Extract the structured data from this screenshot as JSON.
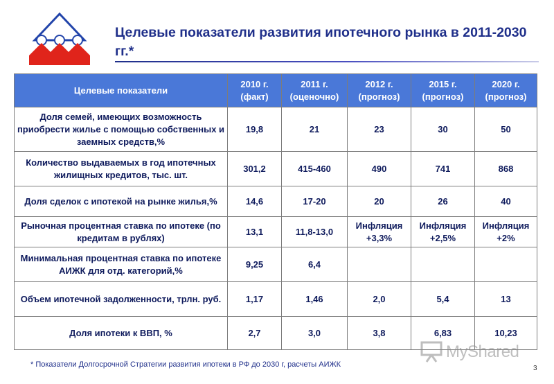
{
  "title": "Целевые показатели развития ипотечного рынка в 2011-2030 гг.*",
  "table": {
    "header": {
      "label": "Целевые показатели",
      "columns": [
        "2010 г. (факт)",
        "2011 г. (оценочно)",
        "2012 г. (прогноз)",
        "2015 г. (прогноз)",
        "2020 г. (прогноз)"
      ]
    },
    "rows": [
      {
        "label": "Доля семей, имеющих возможность приобрести жилье с помощью собственных и заемных средств,%",
        "values": [
          "19,8",
          "21",
          "23",
          "30",
          "50"
        ]
      },
      {
        "label": "Количество выдаваемых в год ипотечных жилищных кредитов, тыс. шт.",
        "values": [
          "301,2",
          "415-460",
          "490",
          "741",
          "868"
        ]
      },
      {
        "label": "Доля сделок с ипотекой на рынке жилья,%",
        "values": [
          "14,6",
          "17-20",
          "20",
          "26",
          "40"
        ]
      },
      {
        "label": "Рыночная процентная ставка по ипотеке (по кредитам в рублях)",
        "values": [
          "13,1",
          "11,8-13,0",
          "Инфляция +3,3%",
          "Инфляция +2,5%",
          "Инфляция +2%"
        ]
      },
      {
        "label": "Минимальная процентная ставка по ипотеке АИЖК для отд. категорий,%",
        "values": [
          "9,25",
          "6,4",
          "",
          "",
          ""
        ]
      },
      {
        "label": "Объем ипотечной задолженности, трлн. руб.",
        "values": [
          "1,17",
          "1,46",
          "2,0",
          "5,4",
          "13"
        ]
      },
      {
        "label": "Доля ипотеки к ВВП, %",
        "values": [
          "2,7",
          "3,0",
          "3,8",
          "6,83",
          "10,23"
        ]
      }
    ]
  },
  "footnote": "* Показатели Долгосрочной Стратегии развития ипотеки в РФ до 2030 г, расчеты АИЖК",
  "page_number": "3",
  "watermark": "MyShared",
  "colors": {
    "title": "#1f2f8a",
    "header_bg": "#4a78d8",
    "text": "#0e1a5c",
    "logo_red": "#e0241b",
    "logo_blue": "#2244aa"
  }
}
